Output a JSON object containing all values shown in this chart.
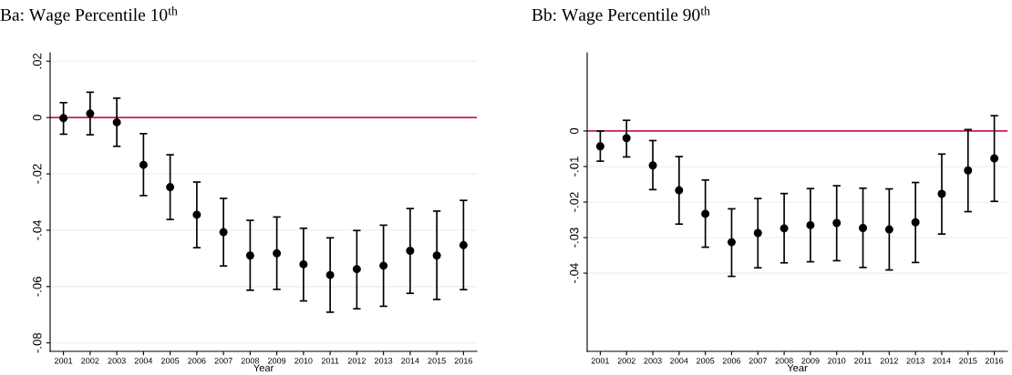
{
  "chart_data": [
    {
      "type": "scatter",
      "title": "Ba: Wage Percentile 10$^{th}$",
      "xlabel": "Year",
      "categories": [
        "2001",
        "2002",
        "2003",
        "2004",
        "2005",
        "2006",
        "2007",
        "2008",
        "2009",
        "2010",
        "2011",
        "2012",
        "2013",
        "2014",
        "2015",
        "2016"
      ],
      "series": [
        {
          "color": "#000000",
          "values": [
            -0.0002,
            0.0014,
            -0.0017,
            -0.0168,
            -0.0247,
            -0.0345,
            -0.0407,
            -0.049,
            -0.0482,
            -0.0521,
            -0.0559,
            -0.0538,
            -0.0526,
            -0.0473,
            -0.049,
            -0.0453
          ],
          "errors": [
            [
              -0.0059,
              0.0053
            ],
            [
              -0.0061,
              0.009
            ],
            [
              -0.0102,
              0.0069
            ],
            [
              -0.0277,
              -0.0057
            ],
            [
              -0.0362,
              -0.0132
            ],
            [
              -0.0462,
              -0.0229
            ],
            [
              -0.0527,
              -0.0287
            ],
            [
              -0.0613,
              -0.0365
            ],
            [
              -0.061,
              -0.0353
            ],
            [
              -0.0651,
              -0.0393
            ],
            [
              -0.0691,
              -0.0427
            ],
            [
              -0.0679,
              -0.0401
            ],
            [
              -0.067,
              -0.0382
            ],
            [
              -0.0624,
              -0.0323
            ],
            [
              -0.0646,
              -0.0332
            ],
            [
              -0.0611,
              -0.0294
            ]
          ]
        }
      ],
      "ylim": [
        -0.083,
        0.023
      ],
      "yticks": [
        {
          "value": -0.08,
          "label": "-.08"
        },
        {
          "value": -0.06,
          "label": "-.06"
        },
        {
          "value": -0.04,
          "label": "-.04"
        },
        {
          "value": -0.02,
          "label": "-.02"
        },
        {
          "value": 0,
          "label": "0"
        },
        {
          "value": 0.02,
          "label": ".02"
        }
      ],
      "ref_lines": [
        {
          "axis": "y",
          "value": 0,
          "color": "#c8204a"
        }
      ],
      "grid": "y",
      "marker": "circle",
      "legend": false
    },
    {
      "type": "scatter",
      "title": "Bb: Wage Percentile 90$^{th}$",
      "xlabel": "Year",
      "categories": [
        "2001",
        "2002",
        "2003",
        "2004",
        "2005",
        "2006",
        "2007",
        "2008",
        "2009",
        "2010",
        "2011",
        "2012",
        "2013",
        "2014",
        "2015",
        "2016"
      ],
      "series": [
        {
          "color": "#000000",
          "values": [
            -0.0043,
            -0.002,
            -0.0097,
            -0.0167,
            -0.0233,
            -0.0313,
            -0.0287,
            -0.0274,
            -0.0265,
            -0.0259,
            -0.0273,
            -0.0277,
            -0.0257,
            -0.0177,
            -0.0111,
            -0.0077
          ],
          "errors": [
            [
              -0.0085,
              0
            ],
            [
              -0.0073,
              0.003
            ],
            [
              -0.0165,
              -0.0027
            ],
            [
              -0.0262,
              -0.0072
            ],
            [
              -0.0327,
              -0.0138
            ],
            [
              -0.0409,
              -0.0219
            ],
            [
              -0.0385,
              -0.019
            ],
            [
              -0.0371,
              -0.0176
            ],
            [
              -0.0368,
              -0.0162
            ],
            [
              -0.0365,
              -0.0154
            ],
            [
              -0.0384,
              -0.0161
            ],
            [
              -0.0391,
              -0.0163
            ],
            [
              -0.037,
              -0.0145
            ],
            [
              -0.029,
              -0.0065
            ],
            [
              -0.0227,
              0.0004
            ],
            [
              -0.0198,
              0.0043
            ]
          ]
        }
      ],
      "ylim": [
        -0.062,
        0.022
      ],
      "yticks": [
        {
          "value": -0.04,
          "label": "-.04"
        },
        {
          "value": -0.03,
          "label": "-.03"
        },
        {
          "value": -0.02,
          "label": "-.02"
        },
        {
          "value": -0.01,
          "label": "-.01"
        },
        {
          "value": 0,
          "label": "0"
        }
      ],
      "ref_lines": [
        {
          "axis": "y",
          "value": 0,
          "color": "#c8204a"
        }
      ],
      "grid": "y",
      "marker": "circle",
      "legend": false
    }
  ]
}
